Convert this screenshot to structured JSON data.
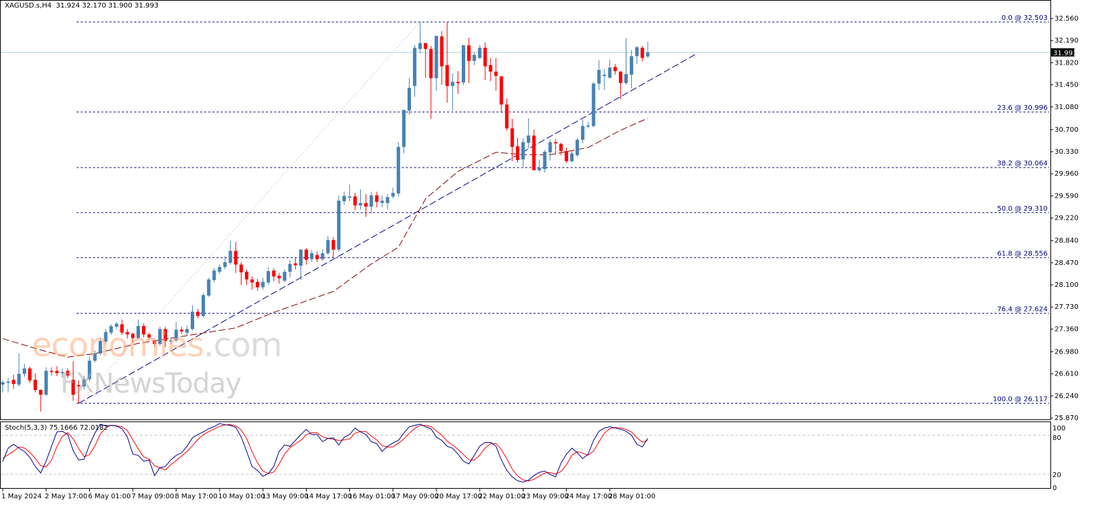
{
  "header": {
    "symbol": "XAGUSD.s,H4",
    "ohlc": "31.924 32.170 31.900 31.993"
  },
  "watermark": {
    "brand_main": "economies",
    "brand_suffix": ".com",
    "brand_secondary": "FXNewsToday"
  },
  "stoch_header": "Stoch(5,3,3) 75.1666 72.0182",
  "colors": {
    "bull": "#4682b4",
    "bear": "#ff0000",
    "fib": "#00007f",
    "trendline": "#00008b",
    "moving_average": "#800000",
    "current_price_line": "#add8e6",
    "stoch_k": "#00008b",
    "stoch_d": "#ff0000",
    "grid_levels": "#c0c0c0"
  },
  "chart_data": [
    {
      "type": "candlestick",
      "symbol": "XAGUSD.s",
      "timeframe": "H4",
      "ylim": [
        25.87,
        32.56
      ],
      "price_ticks": [
        "32.560",
        "32.190",
        "31.820",
        "31.450",
        "31.080",
        "30.700",
        "30.330",
        "29.960",
        "29.590",
        "29.220",
        "28.840",
        "28.470",
        "28.100",
        "27.730",
        "27.360",
        "26.980",
        "26.610",
        "26.240",
        "25.870"
      ],
      "current_price": "31.993",
      "time_labels": [
        "1 May 2024",
        "2 May 17:00",
        "6 May 01:00",
        "7 May 09:00",
        "8 May 17:00",
        "10 May 01:00",
        "13 May 09:00",
        "14 May 17:00",
        "16 May 01:00",
        "17 May 09:00",
        "20 May 17:00",
        "22 May 01:00",
        "23 May 09:00",
        "24 May 17:00",
        "28 May 01:00"
      ],
      "time_label_every_bars": 8,
      "candles_ohlc": [
        [
          26.43,
          26.5,
          26.3,
          26.47
        ],
        [
          26.47,
          26.54,
          26.3,
          26.48
        ],
        [
          26.51,
          26.6,
          26.36,
          26.44
        ],
        [
          26.43,
          26.95,
          26.4,
          26.61
        ],
        [
          26.61,
          26.78,
          26.56,
          26.7
        ],
        [
          26.7,
          26.73,
          26.46,
          26.5
        ],
        [
          26.51,
          26.62,
          26.3,
          26.34
        ],
        [
          26.34,
          26.35,
          25.98,
          26.26
        ],
        [
          26.26,
          26.72,
          26.24,
          26.66
        ],
        [
          26.66,
          26.72,
          26.58,
          26.65
        ],
        [
          26.66,
          26.74,
          26.57,
          26.62
        ],
        [
          26.62,
          26.7,
          26.55,
          26.64
        ],
        [
          26.66,
          26.7,
          26.54,
          26.58
        ],
        [
          26.51,
          26.82,
          26.16,
          26.26
        ],
        [
          26.42,
          26.5,
          26.117,
          26.4
        ],
        [
          26.4,
          26.58,
          26.35,
          26.52
        ],
        [
          26.52,
          26.9,
          26.48,
          26.83
        ],
        [
          26.83,
          27.0,
          26.8,
          26.95
        ],
        [
          26.95,
          27.22,
          26.92,
          27.16
        ],
        [
          27.15,
          27.36,
          27.1,
          27.31
        ],
        [
          27.3,
          27.44,
          27.26,
          27.41
        ],
        [
          27.4,
          27.48,
          27.36,
          27.45
        ],
        [
          27.44,
          27.52,
          27.26,
          27.3
        ],
        [
          27.31,
          27.36,
          27.2,
          27.27
        ],
        [
          27.28,
          27.3,
          27.14,
          27.21
        ],
        [
          27.21,
          27.52,
          27.18,
          27.41
        ],
        [
          27.41,
          27.46,
          27.22,
          27.27
        ],
        [
          27.27,
          27.3,
          27.18,
          27.22
        ],
        [
          27.16,
          27.2,
          27.06,
          27.11
        ],
        [
          27.11,
          27.4,
          27.08,
          27.36
        ],
        [
          27.36,
          27.4,
          27.06,
          27.16
        ],
        [
          27.16,
          27.22,
          27.12,
          27.17
        ],
        [
          27.17,
          27.48,
          27.14,
          27.35
        ],
        [
          27.35,
          27.4,
          27.28,
          27.32
        ],
        [
          27.3,
          27.42,
          27.26,
          27.36
        ],
        [
          27.36,
          27.76,
          27.34,
          27.65
        ],
        [
          27.65,
          27.7,
          27.54,
          27.58
        ],
        [
          27.58,
          27.96,
          27.56,
          27.93
        ],
        [
          27.92,
          28.22,
          27.9,
          28.19
        ],
        [
          28.18,
          28.38,
          28.14,
          28.34
        ],
        [
          28.32,
          28.44,
          28.28,
          28.4
        ],
        [
          28.4,
          28.58,
          28.36,
          28.48
        ],
        [
          28.47,
          28.84,
          28.44,
          28.67
        ],
        [
          28.67,
          28.82,
          28.3,
          28.44
        ],
        [
          28.44,
          28.48,
          28.1,
          28.31
        ],
        [
          28.32,
          28.36,
          28.1,
          28.19
        ],
        [
          28.19,
          28.24,
          28.02,
          28.14
        ],
        [
          28.15,
          28.2,
          28.0,
          28.06
        ],
        [
          28.06,
          28.22,
          28.02,
          28.15
        ],
        [
          28.14,
          28.4,
          28.1,
          28.33
        ],
        [
          28.34,
          28.38,
          28.16,
          28.24
        ],
        [
          28.25,
          28.3,
          28.12,
          28.21
        ],
        [
          28.17,
          28.36,
          28.14,
          28.32
        ],
        [
          28.32,
          28.52,
          28.22,
          28.45
        ],
        [
          28.46,
          28.56,
          28.36,
          28.43
        ],
        [
          28.42,
          28.7,
          28.18,
          28.69
        ],
        [
          28.69,
          28.72,
          28.44,
          28.52
        ],
        [
          28.53,
          28.68,
          28.48,
          28.63
        ],
        [
          28.6,
          28.66,
          28.48,
          28.53
        ],
        [
          28.53,
          28.7,
          28.5,
          28.63
        ],
        [
          28.63,
          28.92,
          28.6,
          28.85
        ],
        [
          28.85,
          28.9,
          28.56,
          28.69
        ],
        [
          28.69,
          29.6,
          28.66,
          29.51
        ],
        [
          29.5,
          29.66,
          29.44,
          29.59
        ],
        [
          29.56,
          29.78,
          29.5,
          29.58
        ],
        [
          29.58,
          29.64,
          29.35,
          29.43
        ],
        [
          29.43,
          29.7,
          29.36,
          29.47
        ],
        [
          29.47,
          29.62,
          29.24,
          29.41
        ],
        [
          29.41,
          29.66,
          29.3,
          29.6
        ],
        [
          29.6,
          29.66,
          29.4,
          29.49
        ],
        [
          29.47,
          29.6,
          29.4,
          29.51
        ],
        [
          29.47,
          29.62,
          29.36,
          29.57
        ],
        [
          29.58,
          29.73,
          29.55,
          29.64
        ],
        [
          29.63,
          30.49,
          29.58,
          30.41
        ],
        [
          30.41,
          31.03,
          30.3,
          31.03
        ],
        [
          31.02,
          31.56,
          30.95,
          31.4
        ],
        [
          31.43,
          32.12,
          31.25,
          32.07
        ],
        [
          32.05,
          32.503,
          31.98,
          32.15
        ],
        [
          32.15,
          32.15,
          31.57,
          32.05
        ],
        [
          32.05,
          32.1,
          30.88,
          31.56
        ],
        [
          31.56,
          32.27,
          31.35,
          32.27
        ],
        [
          32.26,
          32.35,
          31.45,
          31.76
        ],
        [
          31.78,
          32.5,
          31.15,
          31.43
        ],
        [
          31.43,
          31.64,
          31.02,
          31.5
        ],
        [
          31.5,
          31.68,
          31.3,
          31.48
        ],
        [
          31.49,
          32.12,
          31.45,
          32.11
        ],
        [
          32.11,
          32.24,
          31.48,
          31.85
        ],
        [
          31.85,
          32.0,
          31.78,
          31.95
        ],
        [
          31.9,
          32.12,
          31.88,
          32.07
        ],
        [
          32.07,
          32.16,
          31.53,
          31.76
        ],
        [
          31.78,
          31.9,
          31.51,
          31.67
        ],
        [
          31.67,
          31.9,
          31.35,
          31.6
        ],
        [
          31.59,
          31.6,
          30.98,
          31.12
        ],
        [
          31.12,
          31.22,
          30.68,
          30.72
        ],
        [
          30.72,
          30.88,
          30.17,
          30.41
        ],
        [
          30.42,
          30.56,
          30.15,
          30.19
        ],
        [
          30.2,
          30.56,
          30.08,
          30.49
        ],
        [
          30.48,
          30.89,
          30.38,
          30.6
        ],
        [
          30.6,
          30.7,
          30.02,
          30.02
        ],
        [
          30.02,
          30.2,
          29.99,
          30.06
        ],
        [
          30.04,
          30.36,
          29.98,
          30.33
        ],
        [
          30.32,
          30.53,
          30.18,
          30.49
        ],
        [
          30.49,
          30.54,
          30.28,
          30.47
        ],
        [
          30.46,
          30.48,
          30.27,
          30.34
        ],
        [
          30.34,
          30.4,
          30.14,
          30.17
        ],
        [
          30.17,
          30.35,
          30.15,
          30.3
        ],
        [
          30.27,
          30.56,
          30.25,
          30.53
        ],
        [
          30.53,
          30.87,
          30.47,
          30.76
        ],
        [
          30.76,
          30.83,
          30.72,
          30.77
        ],
        [
          30.76,
          31.5,
          30.74,
          31.47
        ],
        [
          31.47,
          31.86,
          31.36,
          31.7
        ],
        [
          31.6,
          31.72,
          31.36,
          31.62
        ],
        [
          31.57,
          31.87,
          31.55,
          31.74
        ],
        [
          31.75,
          31.8,
          31.62,
          31.68
        ],
        [
          31.67,
          31.68,
          31.21,
          31.48
        ],
        [
          31.48,
          32.23,
          31.45,
          31.63
        ],
        [
          31.62,
          32.03,
          31.39,
          31.93
        ],
        [
          31.93,
          32.1,
          31.8,
          32.08
        ],
        [
          32.07,
          32.1,
          31.84,
          31.9
        ],
        [
          31.924,
          32.17,
          31.9,
          31.993
        ]
      ],
      "moving_average_points": [
        [
          1,
          27.2
        ],
        [
          8,
          27.01
        ],
        [
          13,
          26.89
        ],
        [
          18,
          26.95
        ],
        [
          26,
          27.12
        ],
        [
          44,
          27.38
        ],
        [
          51,
          27.64
        ],
        [
          62,
          27.99
        ],
        [
          69,
          28.45
        ],
        [
          74,
          28.73
        ],
        [
          79,
          29.54
        ],
        [
          85,
          30.0
        ],
        [
          92,
          30.32
        ],
        [
          97,
          30.28
        ],
        [
          102,
          30.28
        ],
        [
          109,
          30.4
        ],
        [
          115,
          30.69
        ],
        [
          120,
          30.89
        ]
      ],
      "fibonacci": {
        "anchor_low": {
          "bar": 15,
          "price": 26.117
        },
        "anchor_high": {
          "bar": 78,
          "price": 32.503
        },
        "levels": [
          {
            "label": "0.0 @ 32.503",
            "price": 32.503
          },
          {
            "label": "23.6 @ 30.996",
            "price": 30.996
          },
          {
            "label": "38.2 @ 30.064",
            "price": 30.064
          },
          {
            "label": "50.0 @ 29.310",
            "price": 29.31
          },
          {
            "label": "61.8 @ 28.556",
            "price": 28.556
          },
          {
            "label": "76.4 @ 27.624",
            "price": 27.624
          },
          {
            "label": "100.0 @ 26.117",
            "price": 26.117
          }
        ]
      },
      "trendline": {
        "start": {
          "bar": 15,
          "price": 26.117
        },
        "end": {
          "bar": 129,
          "price": 31.97
        }
      }
    },
    {
      "type": "line",
      "indicator": "Stochastic",
      "parameters": "5,3,3",
      "ylim": [
        0,
        100
      ],
      "y_ticks": [
        "100",
        "80",
        "20",
        "0"
      ],
      "levels": [
        80,
        20
      ],
      "k": [
        40,
        60,
        66,
        60,
        55,
        46,
        32,
        22,
        40,
        63,
        85,
        86,
        81,
        56,
        42,
        43,
        65,
        83,
        97,
        94,
        95,
        94,
        90,
        77,
        51,
        49,
        40,
        42,
        18,
        30,
        32,
        42,
        49,
        53,
        63,
        76,
        81,
        85,
        90,
        93,
        98,
        96,
        95,
        92,
        77,
        55,
        32,
        26,
        17,
        21,
        32,
        55,
        65,
        63,
        72,
        81,
        89,
        81,
        81,
        70,
        75,
        76,
        65,
        77,
        81,
        91,
        85,
        81,
        70,
        67,
        55,
        63,
        68,
        72,
        83,
        93,
        95,
        97,
        93,
        90,
        77,
        72,
        63,
        60,
        51,
        40,
        36,
        49,
        63,
        69,
        69,
        63,
        42,
        26,
        16,
        10,
        8,
        11,
        18,
        23,
        25,
        20,
        16,
        37,
        51,
        60,
        53,
        44,
        51,
        72,
        86,
        91,
        93,
        91,
        89,
        86,
        80,
        66,
        62,
        75.1666
      ],
      "d": [
        45,
        50,
        55.3,
        62,
        60.3,
        53.7,
        44.3,
        33.3,
        31.3,
        41.7,
        62.7,
        78,
        84,
        74.3,
        59.7,
        47,
        50,
        63.7,
        81.7,
        91.3,
        95.3,
        94.3,
        93,
        87,
        72.7,
        59,
        46.7,
        43.7,
        33.3,
        30,
        26.7,
        34.7,
        41,
        48,
        55,
        64,
        73.3,
        80.7,
        85.3,
        89.3,
        93.7,
        95.7,
        96.3,
        94.3,
        88,
        74.7,
        54.7,
        37.7,
        25,
        21.3,
        23.3,
        36,
        50.7,
        61,
        66.7,
        72,
        80.7,
        83.7,
        83.7,
        77.3,
        75.3,
        73.7,
        72,
        72.7,
        74.3,
        83,
        85.7,
        85.7,
        78.7,
        72.7,
        64,
        61.7,
        62,
        67.7,
        74.3,
        82.7,
        90.3,
        95,
        95,
        93.3,
        86.7,
        79.7,
        70.7,
        65,
        58,
        50.3,
        42.3,
        41.7,
        49.3,
        60.3,
        67,
        67,
        58,
        43.7,
        28,
        17.3,
        11.3,
        9.7,
        12.3,
        17.3,
        22,
        22.7,
        20.3,
        24.3,
        34.7,
        49.3,
        54.7,
        52.3,
        49.3,
        55.7,
        69.7,
        83,
        90,
        91.7,
        91,
        88.7,
        85,
        76,
        69.3,
        72.0182
      ]
    }
  ]
}
